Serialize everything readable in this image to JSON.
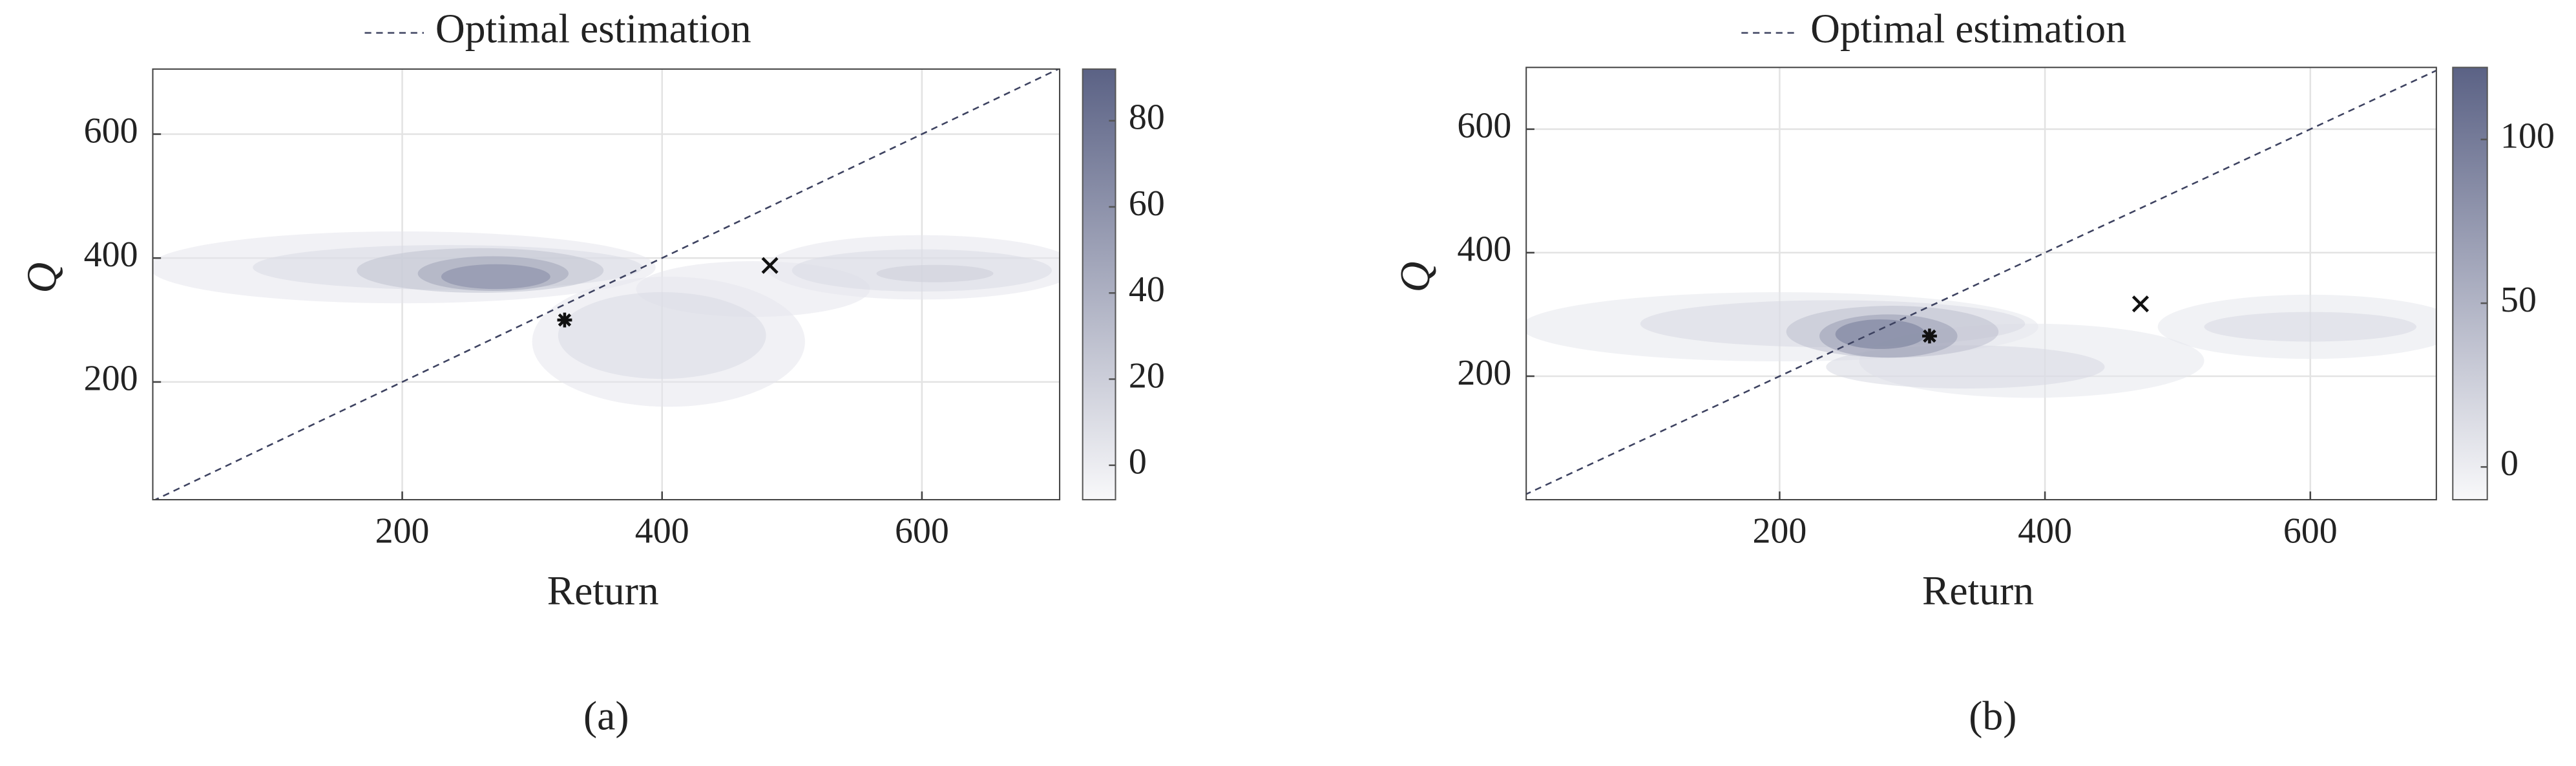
{
  "chart_data": [
    {
      "type": "contour",
      "caption": "(a)",
      "xlabel": "Return",
      "ylabel": "Q",
      "xlim": [
        8,
        706
      ],
      "ylim": [
        10,
        705
      ],
      "xticks": [
        200,
        400,
        600
      ],
      "yticks": [
        200,
        400,
        600
      ],
      "grid": true,
      "reference_line": {
        "name": "Optimal estimation",
        "color": "#3d4260"
      },
      "colorbar": {
        "lim": [
          -8,
          92
        ],
        "ticks": [
          0,
          20,
          40,
          60,
          80
        ],
        "colors": [
          "#f8f8fa",
          "#5b6285"
        ]
      },
      "regions": [
        {
          "cx": 200,
          "cy": 385,
          "rx": 195,
          "ry": 58,
          "level": 4
        },
        {
          "cx": 600,
          "cy": 385,
          "rx": 120,
          "ry": 52,
          "level": 4
        },
        {
          "cx": 405,
          "cy": 265,
          "rx": 105,
          "ry": 105,
          "level": 4
        },
        {
          "cx": 470,
          "cy": 350,
          "rx": 90,
          "ry": 45,
          "level": 4
        },
        {
          "cx": 235,
          "cy": 385,
          "rx": 150,
          "ry": 36,
          "level": 12
        },
        {
          "cx": 600,
          "cy": 380,
          "rx": 100,
          "ry": 34,
          "level": 12
        },
        {
          "cx": 400,
          "cy": 275,
          "rx": 80,
          "ry": 70,
          "level": 12
        },
        {
          "cx": 260,
          "cy": 380,
          "rx": 95,
          "ry": 36,
          "level": 28
        },
        {
          "cx": 610,
          "cy": 375,
          "rx": 45,
          "ry": 14,
          "level": 20
        },
        {
          "cx": 270,
          "cy": 375,
          "rx": 58,
          "ry": 28,
          "level": 48
        },
        {
          "cx": 272,
          "cy": 370,
          "rx": 42,
          "ry": 20,
          "level": 65
        }
      ],
      "markers": [
        {
          "marker": "star",
          "x": 325,
          "y": 300
        },
        {
          "marker": "cross",
          "x": 483,
          "y": 388
        }
      ]
    },
    {
      "type": "contour",
      "caption": "(b)",
      "xlabel": "Return",
      "ylabel": "Q",
      "xlim": [
        9,
        695
      ],
      "ylim": [
        0,
        700
      ],
      "xticks": [
        200,
        400,
        600
      ],
      "yticks": [
        200,
        400,
        600
      ],
      "grid": true,
      "reference_line": {
        "name": "Optimal estimation",
        "color": "#3d4260"
      },
      "colorbar": {
        "lim": [
          -10,
          122
        ],
        "ticks": [
          0,
          50,
          100
        ],
        "colors": [
          "#f8f8fa",
          "#5b6285"
        ]
      },
      "regions": [
        {
          "cx": 200,
          "cy": 280,
          "rx": 195,
          "ry": 56,
          "level": 5
        },
        {
          "cx": 600,
          "cy": 280,
          "rx": 115,
          "ry": 52,
          "level": 5
        },
        {
          "cx": 390,
          "cy": 225,
          "rx": 130,
          "ry": 60,
          "level": 5
        },
        {
          "cx": 240,
          "cy": 285,
          "rx": 145,
          "ry": 38,
          "level": 18
        },
        {
          "cx": 600,
          "cy": 280,
          "rx": 80,
          "ry": 24,
          "level": 18
        },
        {
          "cx": 340,
          "cy": 215,
          "rx": 105,
          "ry": 35,
          "level": 18
        },
        {
          "cx": 285,
          "cy": 272,
          "rx": 80,
          "ry": 42,
          "level": 40
        },
        {
          "cx": 282,
          "cy": 265,
          "rx": 52,
          "ry": 35,
          "level": 70
        },
        {
          "cx": 276,
          "cy": 268,
          "rx": 34,
          "ry": 24,
          "level": 100
        }
      ],
      "markers": [
        {
          "marker": "star",
          "x": 313,
          "y": 265
        },
        {
          "marker": "cross",
          "x": 472,
          "y": 317
        }
      ]
    }
  ]
}
